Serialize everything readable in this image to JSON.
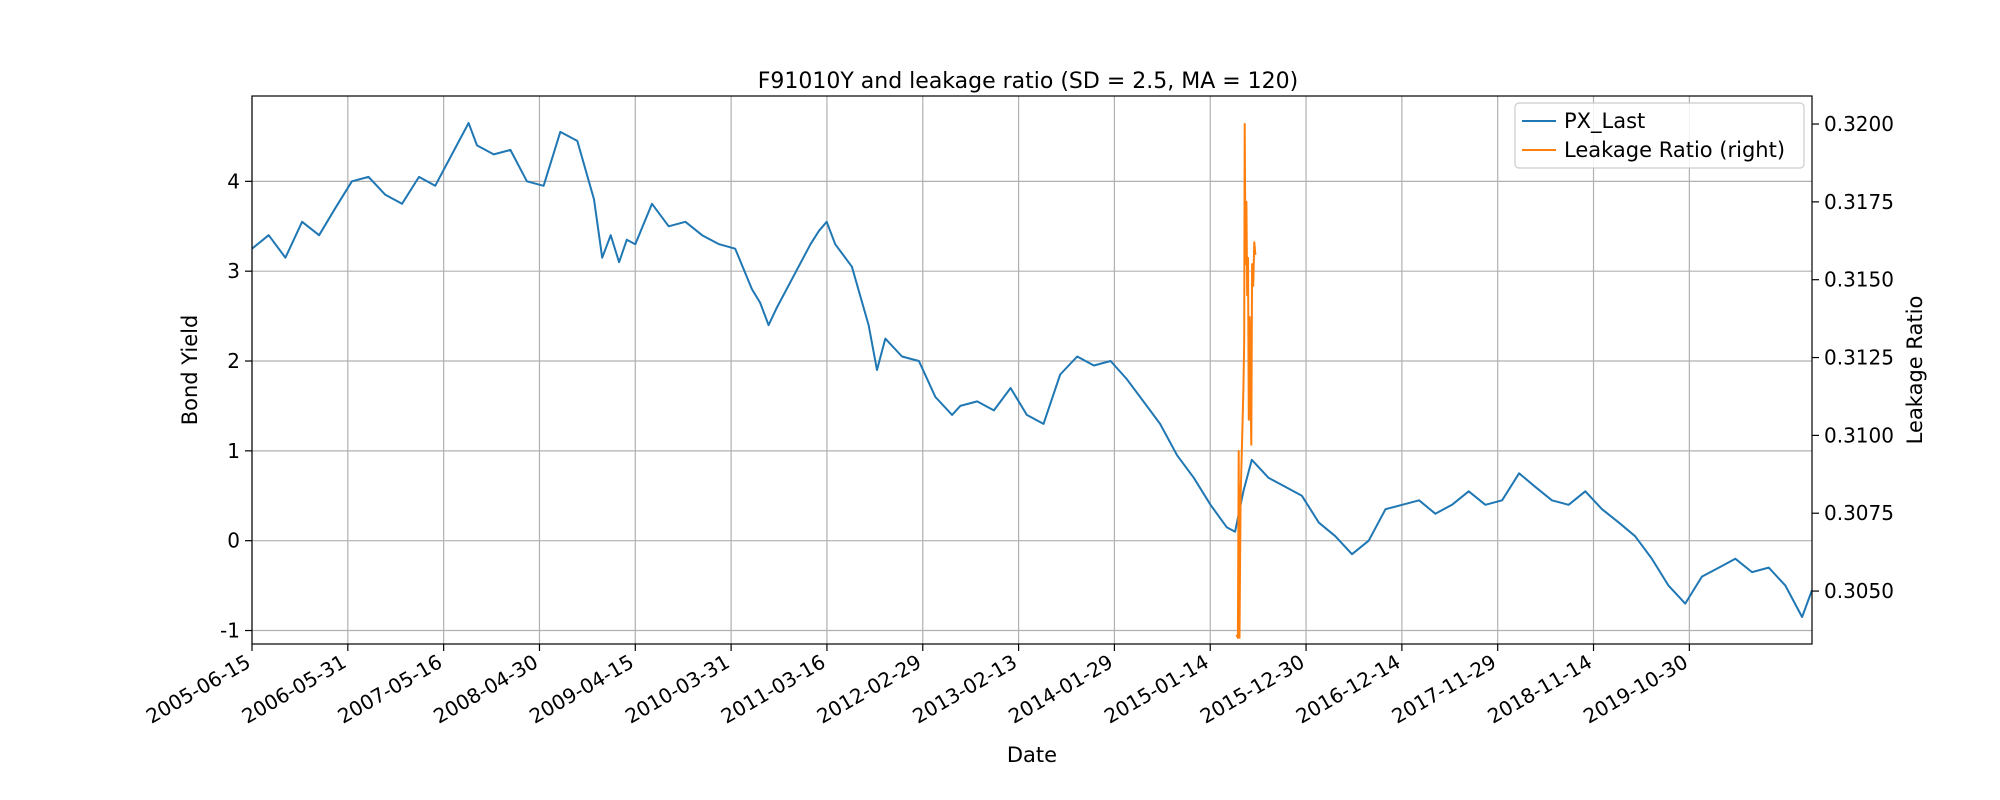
{
  "chart_data": {
    "type": "line",
    "title": "F91010Y and leakage ratio (SD = 2.5, MA = 120)",
    "xlabel": "Date",
    "ylabel": "Bond Yield",
    "ylabel_right": "Leakage Ratio",
    "x_tick_labels": [
      "2005-06-15",
      "2006-05-31",
      "2007-05-16",
      "2008-04-30",
      "2009-04-15",
      "2010-03-31",
      "2011-03-16",
      "2012-02-29",
      "2013-02-13",
      "2014-01-29",
      "2015-01-14",
      "2015-12-30",
      "2016-12-14",
      "2017-11-29",
      "2018-11-14",
      "2019-10-30"
    ],
    "x_range": [
      "2005-06-15",
      "2021-01-20"
    ],
    "ylim": [
      -1.15,
      4.95
    ],
    "ylim_right": [
      0.3033,
      0.3209
    ],
    "y_ticks": [
      -1,
      0,
      1,
      2,
      3,
      4
    ],
    "y_ticks_right": [
      "0.3050",
      "0.3075",
      "0.3100",
      "0.3125",
      "0.3150",
      "0.3175",
      "0.3200"
    ],
    "grid": true,
    "legend_position": "top-right",
    "colors": {
      "px_last": "#1f77b4",
      "leakage": "#ff7f0e"
    },
    "series": [
      {
        "name": "PX_Last",
        "axis": "left",
        "x": [
          "2005-06-15",
          "2005-08-15",
          "2005-10-15",
          "2005-12-15",
          "2006-02-15",
          "2006-04-15",
          "2006-06-15",
          "2006-08-15",
          "2006-10-15",
          "2006-12-15",
          "2007-02-15",
          "2007-04-15",
          "2007-06-15",
          "2007-08-15",
          "2007-09-15",
          "2007-11-15",
          "2008-01-15",
          "2008-03-15",
          "2008-05-15",
          "2008-07-15",
          "2008-09-15",
          "2008-11-15",
          "2008-12-15",
          "2009-01-15",
          "2009-02-15",
          "2009-03-15",
          "2009-04-15",
          "2009-06-15",
          "2009-08-15",
          "2009-10-15",
          "2009-12-15",
          "2010-02-15",
          "2010-04-15",
          "2010-06-15",
          "2010-07-15",
          "2010-08-15",
          "2010-09-15",
          "2010-11-15",
          "2011-01-15",
          "2011-02-15",
          "2011-03-15",
          "2011-04-15",
          "2011-06-15",
          "2011-08-15",
          "2011-09-15",
          "2011-10-15",
          "2011-12-15",
          "2012-02-15",
          "2012-04-15",
          "2012-06-15",
          "2012-07-15",
          "2012-09-15",
          "2012-11-15",
          "2013-01-15",
          "2013-03-15",
          "2013-05-15",
          "2013-07-15",
          "2013-09-15",
          "2013-11-15",
          "2014-01-15",
          "2014-03-15",
          "2014-05-15",
          "2014-07-15",
          "2014-09-15",
          "2014-11-15",
          "2015-01-15",
          "2015-03-15",
          "2015-04-15",
          "2015-05-15",
          "2015-06-15",
          "2015-08-15",
          "2015-10-15",
          "2015-12-15",
          "2016-02-15",
          "2016-04-15",
          "2016-06-15",
          "2016-08-15",
          "2016-10-15",
          "2016-12-15",
          "2017-02-15",
          "2017-04-15",
          "2017-06-15",
          "2017-08-15",
          "2017-10-15",
          "2017-12-15",
          "2018-02-15",
          "2018-04-15",
          "2018-06-15",
          "2018-08-15",
          "2018-10-15",
          "2018-12-15",
          "2019-02-15",
          "2019-04-15",
          "2019-06-15",
          "2019-08-15",
          "2019-10-15",
          "2019-12-15",
          "2020-02-15",
          "2020-04-15",
          "2020-06-15",
          "2020-08-15",
          "2020-10-15",
          "2020-12-15",
          "2021-01-20"
        ],
        "values": [
          3.25,
          3.4,
          3.15,
          3.55,
          3.4,
          3.7,
          4.0,
          4.05,
          3.85,
          3.75,
          4.05,
          3.95,
          4.3,
          4.65,
          4.4,
          4.3,
          4.35,
          4.0,
          3.95,
          4.55,
          4.45,
          3.8,
          3.15,
          3.4,
          3.1,
          3.35,
          3.3,
          3.75,
          3.5,
          3.55,
          3.4,
          3.3,
          3.25,
          2.8,
          2.65,
          2.4,
          2.6,
          2.95,
          3.3,
          3.45,
          3.55,
          3.3,
          3.05,
          2.4,
          1.9,
          2.25,
          2.05,
          2.0,
          1.6,
          1.4,
          1.5,
          1.55,
          1.45,
          1.7,
          1.4,
          1.3,
          1.85,
          2.05,
          1.95,
          2.0,
          1.8,
          1.55,
          1.3,
          0.95,
          0.7,
          0.4,
          0.15,
          0.1,
          0.55,
          0.9,
          0.7,
          0.6,
          0.5,
          0.2,
          0.05,
          -0.15,
          0.0,
          0.35,
          0.4,
          0.45,
          0.3,
          0.4,
          0.55,
          0.4,
          0.45,
          0.75,
          0.6,
          0.45,
          0.4,
          0.55,
          0.35,
          0.2,
          0.05,
          -0.2,
          -0.5,
          -0.7,
          -0.4,
          -0.3,
          -0.2,
          -0.35,
          -0.3,
          -0.5,
          -0.85,
          -0.55
        ]
      },
      {
        "name": "Leakage Ratio (right)",
        "axis": "right",
        "x": [
          "2015-04-20",
          "2015-04-25",
          "2015-04-28",
          "2015-05-01",
          "2015-05-05",
          "2015-05-10",
          "2015-05-15",
          "2015-05-18",
          "2015-05-20",
          "2015-05-23",
          "2015-05-26",
          "2015-05-29",
          "2015-06-01",
          "2015-06-04",
          "2015-06-07",
          "2015-06-10",
          "2015-06-13",
          "2015-06-16",
          "2015-06-20",
          "2015-06-24",
          "2015-06-28"
        ],
        "values": [
          0.3036,
          0.3035,
          0.3095,
          0.3035,
          0.308,
          0.3097,
          0.3115,
          0.313,
          0.32,
          0.3155,
          0.3175,
          0.3145,
          0.3157,
          0.3105,
          0.3138,
          0.3113,
          0.3097,
          0.3155,
          0.3148,
          0.3162,
          0.3158
        ]
      }
    ]
  }
}
